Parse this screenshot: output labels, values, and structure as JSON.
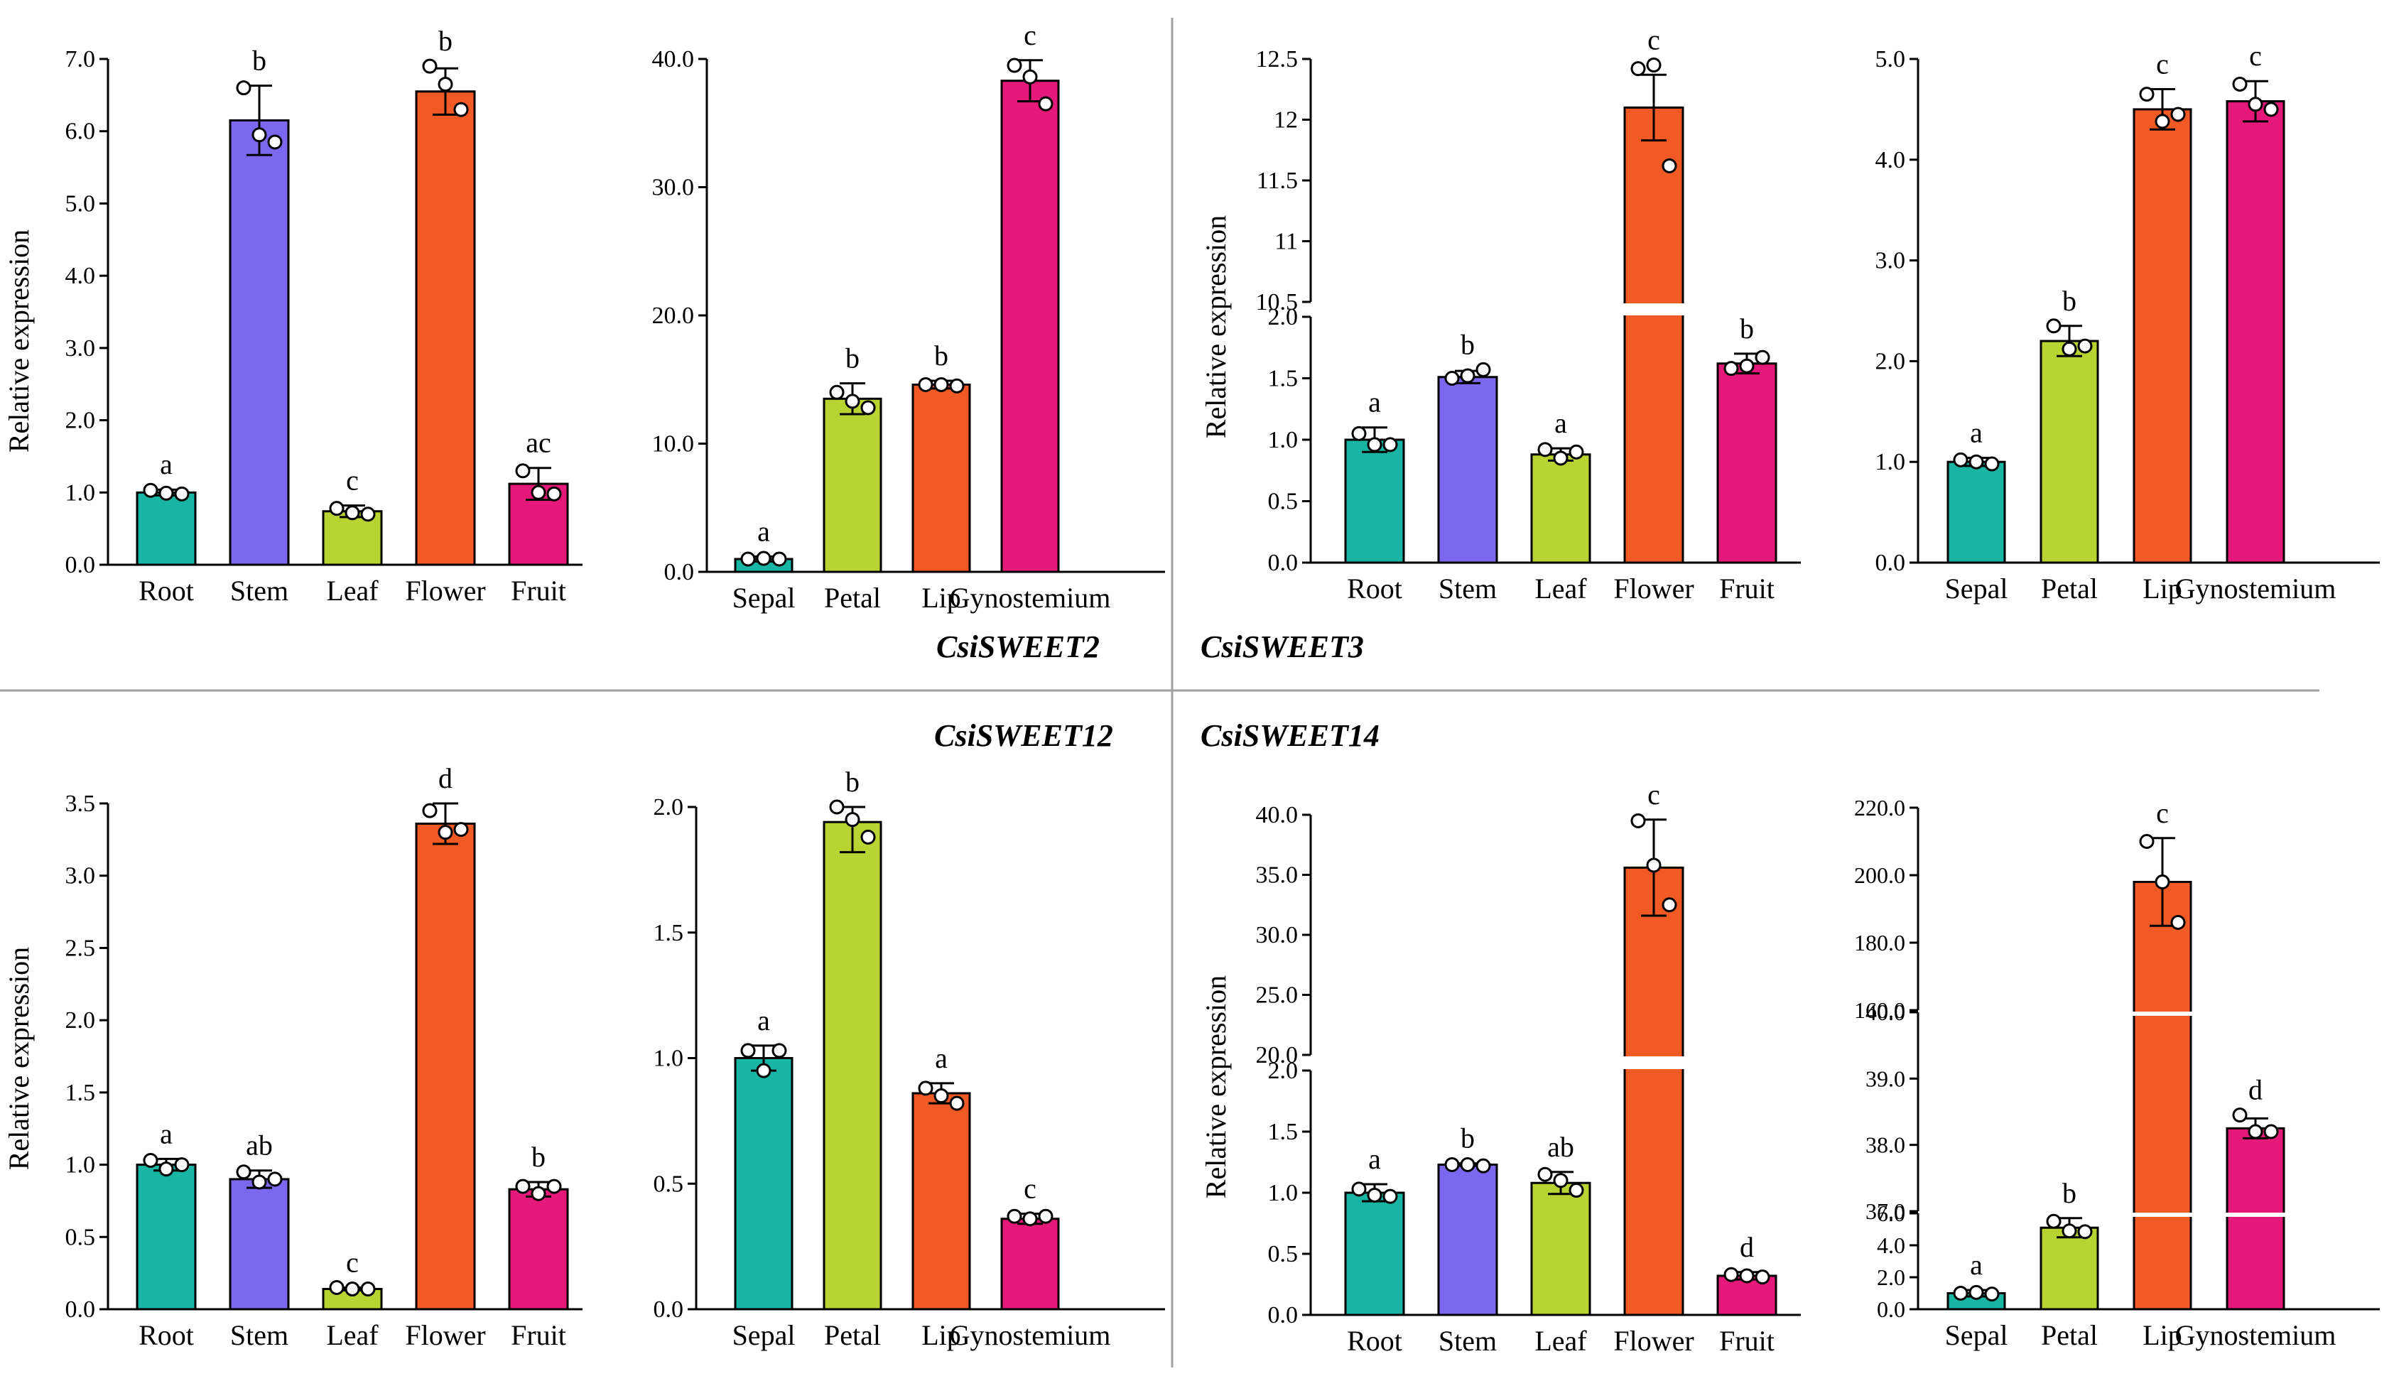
{
  "colors": {
    "teal": "#18b4a4",
    "purple": "#7b68ee",
    "lime": "#b8d432",
    "orange": "#f15a24",
    "magenta": "#e5197a",
    "divider": "#a0a0a0"
  },
  "gene_labels": {
    "sweet2": "CsiSWEET2",
    "sweet3": "CsiSWEET3",
    "sweet12": "CsiSWEET12",
    "sweet14": "CsiSWEET14"
  },
  "chart_data": [
    {
      "id": "sweet2-tissue",
      "type": "bar",
      "gene": "CsiSWEET2",
      "ylabel": "Relative expression",
      "categories": [
        "Root",
        "Stem",
        "Leaf",
        "Flower",
        "Fruit"
      ],
      "values": [
        1.0,
        6.15,
        0.74,
        6.55,
        1.12
      ],
      "errors": [
        0.04,
        0.48,
        0.08,
        0.32,
        0.22
      ],
      "points": [
        [
          1.03,
          0.99,
          0.98
        ],
        [
          6.6,
          5.95,
          5.85
        ],
        [
          0.78,
          0.72,
          0.7
        ],
        [
          6.9,
          6.65,
          6.3
        ],
        [
          1.3,
          1.0,
          0.98
        ]
      ],
      "letters": [
        "a",
        "b",
        "c",
        "b",
        "ac"
      ],
      "colors": [
        "#18b4a4",
        "#7b68ee",
        "#b8d432",
        "#f15a24",
        "#e5197a"
      ],
      "ylim": [
        0,
        7
      ],
      "ticks": [
        0,
        1,
        2,
        3,
        4,
        5,
        6,
        7
      ],
      "tick_labels": [
        "0.0",
        "1.0",
        "2.0",
        "3.0",
        "4.0",
        "5.0",
        "6.0",
        "7.0"
      ]
    },
    {
      "id": "sweet2-flower",
      "type": "bar",
      "gene": "CsiSWEET2",
      "ylabel": "",
      "categories": [
        "Sepal",
        "Petal",
        "Lip",
        "Gynostemium"
      ],
      "values": [
        1.0,
        13.5,
        14.6,
        38.3
      ],
      "errors": [
        0.2,
        1.2,
        0.3,
        1.6
      ],
      "points": [
        [
          1.0,
          1.05,
          1.0
        ],
        [
          14.0,
          13.3,
          12.8
        ],
        [
          14.6,
          14.6,
          14.5
        ],
        [
          39.5,
          38.6,
          36.5
        ]
      ],
      "letters": [
        "a",
        "b",
        "b",
        "c"
      ],
      "colors": [
        "#18b4a4",
        "#b8d432",
        "#f15a24",
        "#e5197a"
      ],
      "ylim": [
        0,
        40
      ],
      "ticks": [
        0,
        10,
        20,
        30,
        40
      ],
      "tick_labels": [
        "0.0",
        "10.0",
        "20.0",
        "30.0",
        "40.0"
      ]
    },
    {
      "id": "sweet3-tissue",
      "type": "bar",
      "gene": "CsiSWEET3",
      "ylabel": "Relative expression",
      "categories": [
        "Root",
        "Stem",
        "Leaf",
        "Flower",
        "Fruit"
      ],
      "values": [
        1.0,
        1.51,
        0.88,
        12.1,
        1.62
      ],
      "errors": [
        0.1,
        0.05,
        0.05,
        0.27,
        0.08
      ],
      "points": [
        [
          1.05,
          0.96,
          0.96
        ],
        [
          1.5,
          1.52,
          1.57
        ],
        [
          0.92,
          0.85,
          0.9
        ],
        [
          12.42,
          12.45,
          11.62
        ],
        [
          1.58,
          1.6,
          1.67
        ]
      ],
      "letters": [
        "a",
        "b",
        "a",
        "c",
        "b"
      ],
      "colors": [
        "#18b4a4",
        "#7b68ee",
        "#b8d432",
        "#f15a24",
        "#e5197a"
      ],
      "broken": true,
      "lower_range": [
        0,
        2
      ],
      "lower_ticks": [
        0,
        0.5,
        1,
        1.5,
        2
      ],
      "lower_tick_labels": [
        "0.0",
        "0.5",
        "1.0",
        "1.5",
        "2.0"
      ],
      "upper_range": [
        10.5,
        12.5
      ],
      "upper_ticks": [
        10.5,
        11,
        11.5,
        12,
        12.5
      ],
      "upper_tick_labels": [
        "10.5",
        "11",
        "11.5",
        "12",
        "12.5"
      ]
    },
    {
      "id": "sweet3-flower",
      "type": "bar",
      "gene": "CsiSWEET3",
      "ylabel": "",
      "categories": [
        "Sepal",
        "Petal",
        "Lip",
        "Gynostemium"
      ],
      "values": [
        1.0,
        2.2,
        4.5,
        4.58
      ],
      "errors": [
        0.04,
        0.15,
        0.2,
        0.2
      ],
      "points": [
        [
          1.02,
          1.0,
          0.98
        ],
        [
          2.35,
          2.12,
          2.15
        ],
        [
          4.65,
          4.38,
          4.45
        ],
        [
          4.75,
          4.55,
          4.5
        ]
      ],
      "letters": [
        "a",
        "b",
        "c",
        "c"
      ],
      "colors": [
        "#18b4a4",
        "#b8d432",
        "#f15a24",
        "#e5197a"
      ],
      "ylim": [
        0,
        5
      ],
      "ticks": [
        0,
        1,
        2,
        3,
        4,
        5
      ],
      "tick_labels": [
        "0.0",
        "1.0",
        "2.0",
        "3.0",
        "4.0",
        "5.0"
      ]
    },
    {
      "id": "sweet12-tissue",
      "type": "bar",
      "gene": "CsiSWEET12",
      "ylabel": "Relative expression",
      "categories": [
        "Root",
        "Stem",
        "Leaf",
        "Flower",
        "Fruit"
      ],
      "values": [
        1.0,
        0.9,
        0.14,
        3.36,
        0.83
      ],
      "errors": [
        0.04,
        0.06,
        0.01,
        0.14,
        0.05
      ],
      "points": [
        [
          1.03,
          0.97,
          1.0
        ],
        [
          0.95,
          0.88,
          0.9
        ],
        [
          0.15,
          0.14,
          0.14
        ],
        [
          3.45,
          3.3,
          3.32
        ],
        [
          0.85,
          0.8,
          0.85
        ]
      ],
      "letters": [
        "a",
        "ab",
        "c",
        "d",
        "b"
      ],
      "colors": [
        "#18b4a4",
        "#7b68ee",
        "#b8d432",
        "#f15a24",
        "#e5197a"
      ],
      "ylim": [
        0,
        3.5
      ],
      "ticks": [
        0,
        0.5,
        1,
        1.5,
        2,
        2.5,
        3,
        3.5
      ],
      "tick_labels": [
        "0.0",
        "0.5",
        "1.0",
        "1.5",
        "2.0",
        "2.5",
        "3.0",
        "3.5"
      ]
    },
    {
      "id": "sweet12-flower",
      "type": "bar",
      "gene": "CsiSWEET12",
      "ylabel": "",
      "categories": [
        "Sepal",
        "Petal",
        "Lip",
        "Gynostemium"
      ],
      "values": [
        1.0,
        1.94,
        0.86,
        0.36
      ],
      "errors": [
        0.05,
        0.12,
        0.04,
        0.02
      ],
      "points": [
        [
          1.03,
          0.95,
          1.03
        ],
        [
          2.05,
          1.95,
          1.88
        ],
        [
          0.88,
          0.85,
          0.82
        ],
        [
          0.37,
          0.36,
          0.37
        ]
      ],
      "letters": [
        "a",
        "b",
        "a",
        "c"
      ],
      "colors": [
        "#18b4a4",
        "#b8d432",
        "#f15a24",
        "#e5197a"
      ],
      "ylim": [
        0,
        2
      ],
      "ticks": [
        0,
        0.5,
        1,
        1.5,
        2
      ],
      "tick_labels": [
        "0.0",
        "0.5",
        "1.0",
        "1.5",
        "2.0"
      ]
    },
    {
      "id": "sweet14-tissue",
      "type": "bar",
      "gene": "CsiSWEET14",
      "ylabel": "Relative expression",
      "categories": [
        "Root",
        "Stem",
        "Leaf",
        "Flower",
        "Fruit"
      ],
      "values": [
        1.0,
        1.23,
        1.08,
        35.6,
        0.32
      ],
      "errors": [
        0.07,
        0.01,
        0.09,
        4.0,
        0.03
      ],
      "points": [
        [
          1.03,
          0.98,
          0.97
        ],
        [
          1.23,
          1.23,
          1.22
        ],
        [
          1.15,
          1.1,
          1.02
        ],
        [
          39.5,
          35.8,
          32.5
        ],
        [
          0.33,
          0.32,
          0.31
        ]
      ],
      "letters": [
        "a",
        "b",
        "ab",
        "c",
        "d"
      ],
      "colors": [
        "#18b4a4",
        "#7b68ee",
        "#b8d432",
        "#f15a24",
        "#e5197a"
      ],
      "broken": true,
      "lower_range": [
        0,
        2
      ],
      "lower_ticks": [
        0,
        0.5,
        1,
        1.5,
        2
      ],
      "lower_tick_labels": [
        "0.0",
        "0.5",
        "1.0",
        "1.5",
        "2.0"
      ],
      "upper_range": [
        20,
        40
      ],
      "upper_ticks": [
        20,
        25,
        30,
        35,
        40
      ],
      "upper_tick_labels": [
        "20.0",
        "25.0",
        "30.0",
        "35.0",
        "40.0"
      ]
    },
    {
      "id": "sweet14-flower",
      "type": "bar",
      "gene": "CsiSWEET14",
      "ylabel": "",
      "categories": [
        "Sepal",
        "Petal",
        "Lip",
        "Gynostemium"
      ],
      "values": [
        1.0,
        5.1,
        198.0,
        38.25
      ],
      "errors": [
        0.2,
        0.6,
        13.0,
        0.15
      ],
      "points": [
        [
          1.0,
          1.05,
          0.95
        ],
        [
          5.5,
          4.9,
          4.85
        ],
        [
          210.0,
          198.0,
          186.0
        ],
        [
          38.45,
          38.2,
          38.2
        ]
      ],
      "letters": [
        "a",
        "b",
        "c",
        "d"
      ],
      "colors": [
        "#18b4a4",
        "#b8d432",
        "#f15a24",
        "#e5197a"
      ],
      "triple": true,
      "seg1_range": [
        0,
        6
      ],
      "seg1_ticks": [
        0,
        2,
        4,
        6
      ],
      "seg1_tick_labels": [
        "0.0",
        "2.0",
        "4.0",
        "6.0"
      ],
      "seg2_range": [
        37,
        40
      ],
      "seg2_ticks": [
        37,
        38,
        39,
        40
      ],
      "seg2_tick_labels": [
        "37.0",
        "38.0",
        "39.0",
        "40.0"
      ],
      "seg3_range": [
        160,
        220
      ],
      "seg3_ticks": [
        160,
        180,
        200,
        220
      ],
      "seg3_tick_labels": [
        "160.0",
        "180.0",
        "200.0",
        "220.0"
      ]
    }
  ]
}
